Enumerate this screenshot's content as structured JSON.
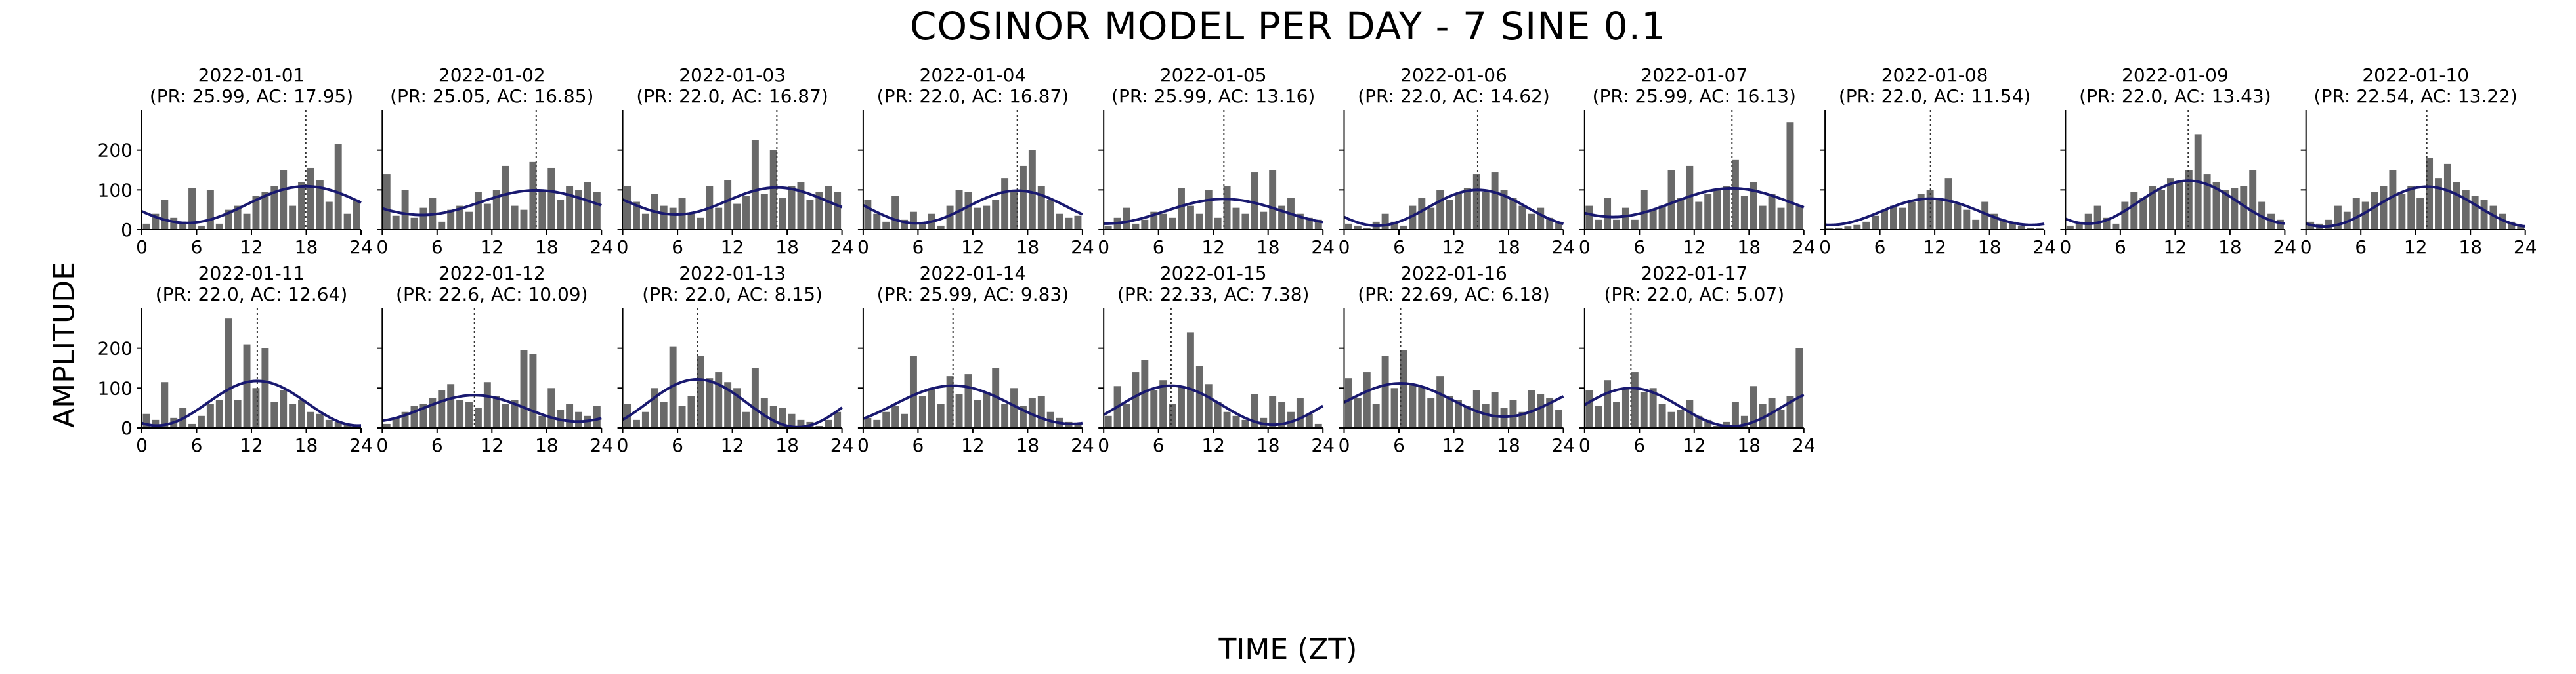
{
  "figure": {
    "title": "COSINOR MODEL PER DAY - 7 SINE 0.1",
    "xlabel": "TIME (ZT)",
    "ylabel": "AMPLITUDE"
  },
  "colors": {
    "bars": "#696969",
    "fit_line": "#191970",
    "acrophase_line": "#333333",
    "axes": "#000000"
  },
  "chart_data": {
    "type": "bar",
    "xlim": [
      0,
      24
    ],
    "ylim": [
      0,
      300
    ],
    "xticks": [
      0,
      6,
      12,
      18,
      24
    ],
    "yticks": [
      0,
      100,
      200
    ],
    "grid": false,
    "panels": [
      {
        "date": "2022-01-01",
        "subtitle": "(PR: 25.99, AC: 17.95)",
        "period": 25.99,
        "acrophase": 17.95,
        "mesor": 63,
        "amplitude": 46,
        "hourly_values": [
          15,
          40,
          75,
          30,
          20,
          105,
          10,
          100,
          15,
          50,
          60,
          40,
          85,
          95,
          110,
          150,
          60,
          120,
          155,
          125,
          70,
          215,
          40,
          75
        ]
      },
      {
        "date": "2022-01-02",
        "subtitle": "(PR: 25.05, AC: 16.85)",
        "period": 25.05,
        "acrophase": 16.85,
        "mesor": 68,
        "amplitude": 31,
        "hourly_values": [
          140,
          35,
          100,
          30,
          55,
          80,
          20,
          50,
          60,
          45,
          95,
          65,
          100,
          160,
          60,
          50,
          170,
          95,
          155,
          75,
          110,
          100,
          120,
          95
        ]
      },
      {
        "date": "2022-01-03",
        "subtitle": "(PR: 22.0, AC: 16.87)",
        "period": 22.0,
        "acrophase": 16.87,
        "mesor": 72,
        "amplitude": 34,
        "hourly_values": [
          110,
          70,
          40,
          90,
          60,
          55,
          80,
          40,
          30,
          110,
          55,
          125,
          65,
          85,
          225,
          90,
          200,
          80,
          110,
          120,
          75,
          95,
          110,
          95
        ]
      },
      {
        "date": "2022-01-04",
        "subtitle": "(PR: 22.0, AC: 16.87)",
        "period": 22.0,
        "acrophase": 16.87,
        "mesor": 57,
        "amplitude": 41,
        "hourly_values": [
          75,
          40,
          20,
          85,
          25,
          45,
          15,
          40,
          10,
          60,
          100,
          95,
          55,
          60,
          75,
          130,
          95,
          160,
          200,
          110,
          75,
          40,
          30,
          35
        ]
      },
      {
        "date": "2022-01-05",
        "subtitle": "(PR: 25.99, AC: 13.16)",
        "period": 25.99,
        "acrophase": 13.16,
        "mesor": 46,
        "amplitude": 31,
        "hourly_values": [
          10,
          30,
          55,
          15,
          25,
          45,
          40,
          30,
          105,
          60,
          40,
          100,
          30,
          110,
          55,
          40,
          145,
          45,
          150,
          60,
          80,
          40,
          30,
          25
        ]
      },
      {
        "date": "2022-01-06",
        "subtitle": "(PR: 22.0, AC: 14.62)",
        "period": 22.0,
        "acrophase": 14.62,
        "mesor": 55,
        "amplitude": 45,
        "hourly_values": [
          15,
          10,
          5,
          20,
          40,
          20,
          10,
          60,
          80,
          55,
          100,
          75,
          90,
          105,
          140,
          95,
          145,
          100,
          80,
          60,
          40,
          55,
          30,
          20
        ]
      },
      {
        "date": "2022-01-07",
        "subtitle": "(PR: 25.99, AC: 16.13)",
        "period": 25.99,
        "acrophase": 16.13,
        "mesor": 68,
        "amplitude": 36,
        "hourly_values": [
          60,
          25,
          80,
          25,
          55,
          25,
          100,
          50,
          60,
          150,
          80,
          160,
          70,
          90,
          100,
          110,
          175,
          85,
          120,
          60,
          90,
          55,
          270,
          60
        ]
      },
      {
        "date": "2022-01-08",
        "subtitle": "(PR: 22.0, AC: 11.54)",
        "period": 22.0,
        "acrophase": 11.54,
        "mesor": 45,
        "amplitude": 33,
        "hourly_values": [
          3,
          5,
          8,
          12,
          20,
          35,
          50,
          60,
          55,
          70,
          90,
          100,
          75,
          130,
          65,
          50,
          25,
          70,
          40,
          25,
          20,
          10,
          5,
          3
        ]
      },
      {
        "date": "2022-01-09",
        "subtitle": "(PR: 22.0, AC: 13.43)",
        "period": 22.0,
        "acrophase": 13.43,
        "mesor": 69,
        "amplitude": 54,
        "hourly_values": [
          10,
          20,
          40,
          60,
          30,
          15,
          70,
          95,
          80,
          110,
          100,
          130,
          120,
          150,
          240,
          140,
          120,
          100,
          105,
          110,
          150,
          70,
          40,
          25
        ]
      },
      {
        "date": "2022-01-10",
        "subtitle": "(PR: 22.54, AC: 13.22)",
        "period": 22.54,
        "acrophase": 13.22,
        "mesor": 58,
        "amplitude": 50,
        "hourly_values": [
          20,
          15,
          25,
          60,
          45,
          80,
          70,
          95,
          110,
          150,
          90,
          110,
          80,
          180,
          130,
          165,
          120,
          100,
          85,
          75,
          60,
          40,
          20,
          10
        ]
      },
      {
        "date": "2022-01-11",
        "subtitle": "(PR: 22.0, AC: 12.64)",
        "period": 22.0,
        "acrophase": 12.64,
        "mesor": 62,
        "amplitude": 56,
        "hourly_values": [
          35,
          20,
          115,
          25,
          50,
          10,
          30,
          60,
          70,
          275,
          70,
          210,
          100,
          200,
          65,
          95,
          60,
          70,
          40,
          35,
          20,
          15,
          10,
          5
        ]
      },
      {
        "date": "2022-01-12",
        "subtitle": "(PR: 22.6, AC: 10.09)",
        "period": 22.6,
        "acrophase": 10.09,
        "mesor": 49,
        "amplitude": 33,
        "hourly_values": [
          10,
          25,
          40,
          55,
          60,
          75,
          95,
          110,
          70,
          65,
          50,
          115,
          80,
          60,
          70,
          195,
          185,
          30,
          100,
          45,
          60,
          40,
          30,
          55
        ]
      },
      {
        "date": "2022-01-13",
        "subtitle": "(PR: 22.0, AC: 8.15)",
        "period": 22.0,
        "acrophase": 8.15,
        "mesor": 62,
        "amplitude": 60,
        "hourly_values": [
          60,
          20,
          40,
          100,
          65,
          205,
          55,
          80,
          180,
          125,
          140,
          115,
          100,
          40,
          150,
          75,
          55,
          50,
          35,
          20,
          15,
          5,
          20,
          40
        ]
      },
      {
        "date": "2022-01-14",
        "subtitle": "(PR: 25.99, AC: 9.83)",
        "period": 25.99,
        "acrophase": 9.83,
        "mesor": 58,
        "amplitude": 48,
        "hourly_values": [
          25,
          20,
          40,
          55,
          35,
          180,
          80,
          100,
          60,
          130,
          85,
          135,
          70,
          90,
          150,
          60,
          100,
          55,
          75,
          80,
          40,
          25,
          15,
          10
        ]
      },
      {
        "date": "2022-01-15",
        "subtitle": "(PR: 22.33, AC: 7.38)",
        "period": 22.33,
        "acrophase": 7.38,
        "mesor": 57,
        "amplitude": 49,
        "hourly_values": [
          30,
          105,
          60,
          140,
          170,
          95,
          120,
          60,
          105,
          240,
          155,
          110,
          65,
          40,
          30,
          20,
          85,
          25,
          80,
          65,
          40,
          75,
          35,
          10
        ]
      },
      {
        "date": "2022-01-16",
        "subtitle": "(PR: 22.69, AC: 6.18)",
        "period": 22.69,
        "acrophase": 6.18,
        "mesor": 70,
        "amplitude": 42,
        "hourly_values": [
          125,
          75,
          140,
          60,
          180,
          100,
          195,
          110,
          105,
          75,
          130,
          80,
          70,
          55,
          95,
          60,
          90,
          50,
          70,
          40,
          95,
          85,
          75,
          45
        ]
      },
      {
        "date": "2022-01-17",
        "subtitle": "(PR: 22.0, AC: 5.07)",
        "period": 22.0,
        "acrophase": 5.07,
        "mesor": 52,
        "amplitude": 48,
        "hourly_values": [
          95,
          55,
          120,
          65,
          100,
          140,
          90,
          100,
          60,
          40,
          45,
          70,
          30,
          20,
          5,
          15,
          65,
          30,
          105,
          60,
          75,
          45,
          80,
          200
        ]
      }
    ]
  }
}
